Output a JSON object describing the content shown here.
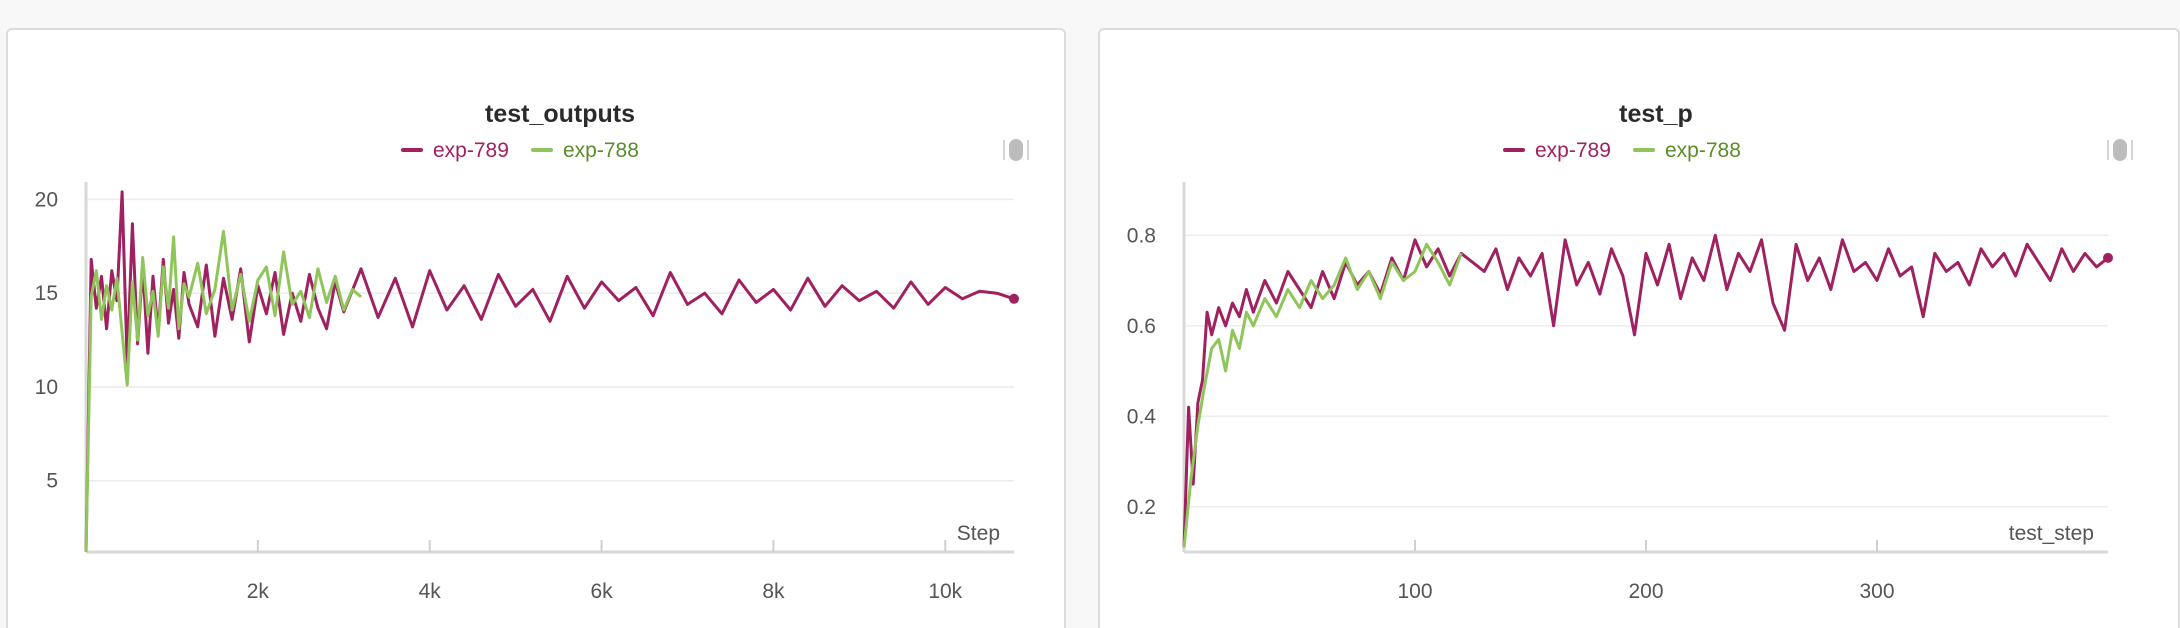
{
  "chart_data": [
    {
      "type": "line",
      "title": "test_outputs",
      "xlabel": "Step",
      "ylabel": "",
      "xlim": [
        0,
        10800
      ],
      "ylim": [
        1.2,
        20.5
      ],
      "x_ticks": [
        2000,
        4000,
        6000,
        8000,
        10000
      ],
      "x_tick_labels": [
        "2k",
        "4k",
        "6k",
        "8k",
        "10k"
      ],
      "y_ticks": [
        5,
        10,
        15,
        20
      ],
      "y_tick_labels": [
        "5",
        "10",
        "15",
        "20"
      ],
      "grid": true,
      "legend": "top-center",
      "series": [
        {
          "name": "exp-789",
          "color": "#a0215f",
          "x": [
            0,
            60,
            120,
            180,
            240,
            300,
            360,
            420,
            480,
            540,
            600,
            660,
            720,
            780,
            840,
            900,
            960,
            1020,
            1080,
            1140,
            1200,
            1300,
            1400,
            1500,
            1600,
            1700,
            1800,
            1900,
            2000,
            2100,
            2200,
            2300,
            2400,
            2500,
            2600,
            2700,
            2800,
            2900,
            3000,
            3200,
            3400,
            3600,
            3800,
            4000,
            4200,
            4400,
            4600,
            4800,
            5000,
            5200,
            5400,
            5600,
            5800,
            6000,
            6200,
            6400,
            6600,
            6800,
            7000,
            7200,
            7400,
            7600,
            7800,
            8000,
            8200,
            8400,
            8600,
            8800,
            9000,
            9200,
            9400,
            9600,
            9800,
            10000,
            10200,
            10400,
            10600,
            10800
          ],
          "values": [
            1.2,
            16.8,
            14.2,
            15.9,
            13.1,
            16.2,
            14.6,
            20.4,
            11.2,
            18.7,
            12.3,
            16.4,
            11.8,
            15.9,
            12.9,
            16.8,
            13.4,
            15.2,
            12.6,
            16.1,
            14.4,
            13.2,
            16.5,
            12.7,
            15.8,
            13.6,
            16.3,
            12.4,
            15.4,
            13.9,
            16.1,
            12.8,
            15.0,
            13.5,
            16.0,
            14.2,
            13.1,
            15.6,
            14.0,
            16.3,
            13.7,
            15.8,
            13.2,
            16.2,
            14.1,
            15.4,
            13.6,
            16.0,
            14.3,
            15.2,
            13.5,
            15.9,
            14.2,
            15.6,
            14.6,
            15.3,
            13.8,
            16.1,
            14.4,
            15.0,
            13.9,
            15.7,
            14.5,
            15.2,
            14.1,
            15.8,
            14.3,
            15.4,
            14.6,
            15.1,
            14.2,
            15.6,
            14.4,
            15.3,
            14.7,
            15.1,
            15.0,
            14.7
          ]
        },
        {
          "name": "exp-788",
          "color": "#8fc55a",
          "x": [
            0,
            60,
            120,
            180,
            240,
            300,
            360,
            420,
            480,
            540,
            600,
            660,
            720,
            780,
            840,
            900,
            960,
            1020,
            1080,
            1140,
            1200,
            1300,
            1400,
            1500,
            1600,
            1700,
            1800,
            1900,
            2000,
            2100,
            2200,
            2300,
            2400,
            2500,
            2600,
            2700,
            2800,
            2900,
            3000,
            3100,
            3200
          ],
          "values": [
            1.2,
            14.8,
            16.2,
            13.6,
            15.4,
            14.1,
            15.8,
            12.9,
            10.1,
            15.6,
            12.5,
            16.9,
            13.8,
            15.1,
            12.7,
            16.4,
            14.2,
            18.0,
            13.1,
            15.5,
            14.8,
            16.6,
            13.9,
            15.2,
            18.3,
            14.1,
            16.0,
            13.5,
            15.7,
            16.4,
            13.8,
            17.2,
            14.4,
            15.1,
            13.7,
            16.3,
            14.5,
            15.9,
            14.1,
            15.2,
            14.8
          ]
        }
      ]
    },
    {
      "type": "line",
      "title": "test_p",
      "xlabel": "test_step",
      "ylabel": "",
      "xlim": [
        0,
        400
      ],
      "ylim": [
        0.1,
        0.9
      ],
      "x_ticks": [
        100,
        200,
        300
      ],
      "x_tick_labels": [
        "100",
        "200",
        "300"
      ],
      "y_ticks": [
        0.2,
        0.4,
        0.6,
        0.8
      ],
      "y_tick_labels": [
        "0.2",
        "0.4",
        "0.6",
        "0.8"
      ],
      "grid": true,
      "legend": "top-center",
      "series": [
        {
          "name": "exp-789",
          "color": "#a0215f",
          "x": [
            0,
            2,
            4,
            6,
            8,
            10,
            12,
            15,
            18,
            21,
            24,
            27,
            30,
            35,
            40,
            45,
            50,
            55,
            60,
            65,
            70,
            75,
            80,
            85,
            90,
            95,
            100,
            105,
            110,
            115,
            120,
            125,
            130,
            135,
            140,
            145,
            150,
            155,
            160,
            165,
            170,
            175,
            180,
            185,
            190,
            195,
            200,
            205,
            210,
            215,
            220,
            225,
            230,
            235,
            240,
            245,
            250,
            255,
            260,
            265,
            270,
            275,
            280,
            285,
            290,
            295,
            300,
            305,
            310,
            315,
            320,
            325,
            330,
            335,
            340,
            345,
            350,
            355,
            360,
            365,
            370,
            375,
            380,
            385,
            390,
            395,
            400
          ],
          "values": [
            0.11,
            0.42,
            0.25,
            0.43,
            0.48,
            0.63,
            0.58,
            0.64,
            0.6,
            0.65,
            0.62,
            0.68,
            0.63,
            0.7,
            0.65,
            0.72,
            0.68,
            0.64,
            0.72,
            0.66,
            0.74,
            0.69,
            0.72,
            0.67,
            0.75,
            0.7,
            0.79,
            0.73,
            0.77,
            0.71,
            0.76,
            0.74,
            0.72,
            0.77,
            0.68,
            0.75,
            0.71,
            0.76,
            0.6,
            0.79,
            0.69,
            0.74,
            0.67,
            0.77,
            0.71,
            0.58,
            0.76,
            0.69,
            0.78,
            0.66,
            0.75,
            0.7,
            0.8,
            0.68,
            0.76,
            0.72,
            0.79,
            0.65,
            0.59,
            0.78,
            0.7,
            0.75,
            0.68,
            0.79,
            0.72,
            0.74,
            0.7,
            0.77,
            0.71,
            0.73,
            0.62,
            0.76,
            0.72,
            0.74,
            0.69,
            0.77,
            0.73,
            0.76,
            0.71,
            0.78,
            0.74,
            0.7,
            0.77,
            0.72,
            0.76,
            0.73,
            0.75
          ]
        },
        {
          "name": "exp-788",
          "color": "#8fc55a",
          "x": [
            0,
            3,
            6,
            9,
            12,
            15,
            18,
            21,
            24,
            27,
            30,
            35,
            40,
            45,
            50,
            55,
            60,
            65,
            70,
            75,
            80,
            85,
            90,
            95,
            100,
            105,
            110,
            115,
            120
          ],
          "values": [
            0.11,
            0.26,
            0.38,
            0.47,
            0.55,
            0.57,
            0.5,
            0.59,
            0.55,
            0.63,
            0.6,
            0.66,
            0.62,
            0.68,
            0.64,
            0.7,
            0.66,
            0.69,
            0.75,
            0.68,
            0.72,
            0.66,
            0.74,
            0.7,
            0.72,
            0.78,
            0.74,
            0.69,
            0.76
          ]
        }
      ]
    }
  ]
}
